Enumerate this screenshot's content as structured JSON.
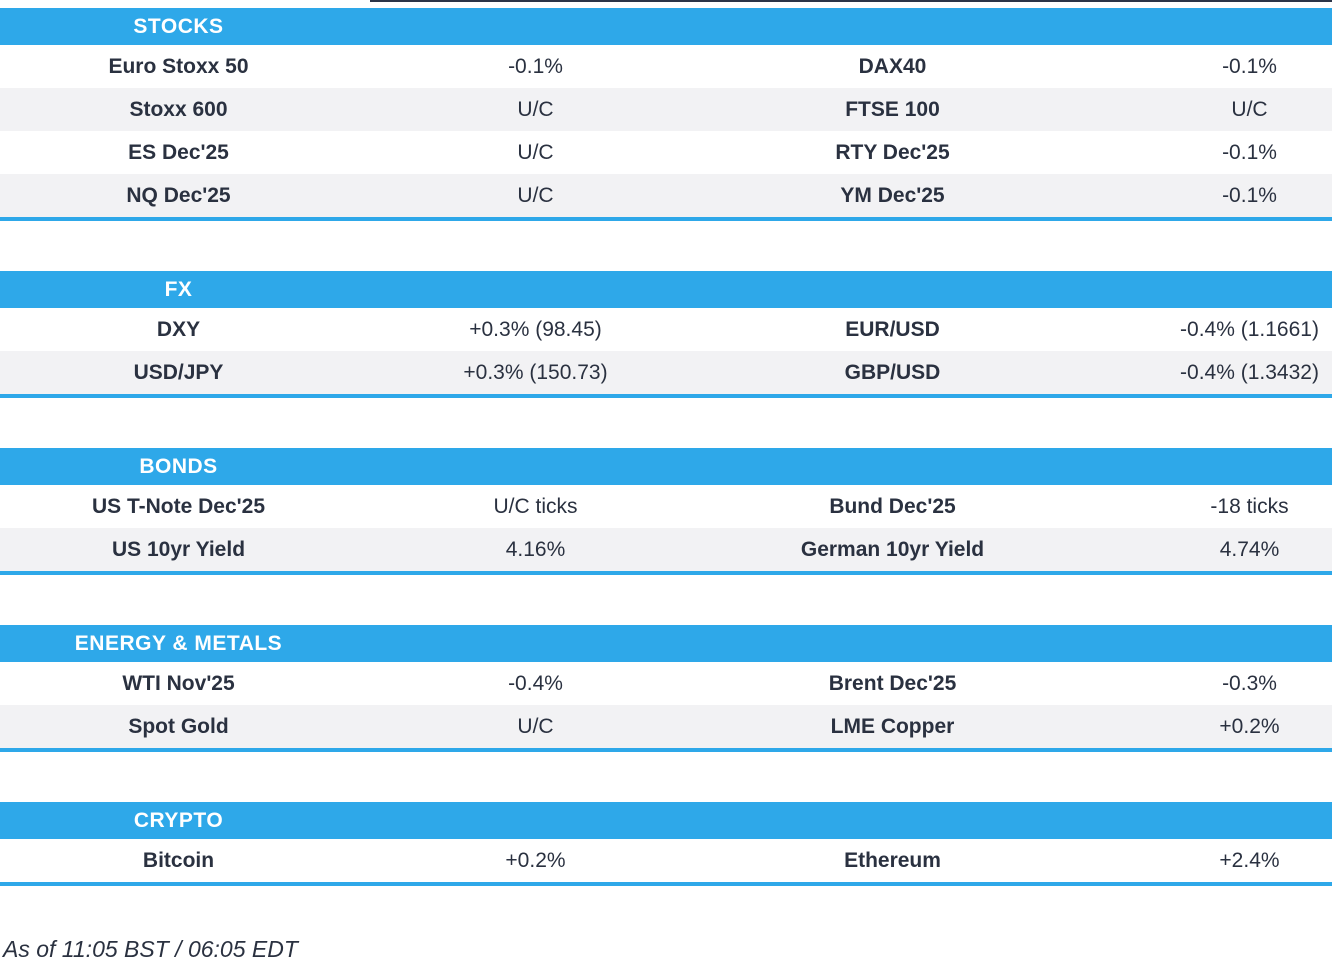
{
  "colors": {
    "accent_blue": "#2EA8E9",
    "row_alt": "#F2F2F4",
    "text_dark": "#2A3140",
    "header_text": "#FFFFFF",
    "top_sliver": "#2B3548"
  },
  "sections": {
    "stocks": {
      "title": "STOCKS",
      "rows": [
        {
          "left": {
            "label": "Euro Stoxx 50",
            "value": "-0.1%"
          },
          "right": {
            "label": "DAX40",
            "value": "-0.1%"
          }
        },
        {
          "left": {
            "label": "Stoxx 600",
            "value": "U/C"
          },
          "right": {
            "label": "FTSE 100",
            "value": "U/C"
          }
        },
        {
          "left": {
            "label": "ES Dec'25",
            "value": "U/C"
          },
          "right": {
            "label": "RTY Dec'25",
            "value": "-0.1%"
          }
        },
        {
          "left": {
            "label": "NQ Dec'25",
            "value": "U/C"
          },
          "right": {
            "label": "YM Dec'25",
            "value": "-0.1%"
          }
        }
      ]
    },
    "fx": {
      "title": "FX",
      "rows": [
        {
          "left": {
            "label": "DXY",
            "value": "+0.3% (98.45)"
          },
          "right": {
            "label": "EUR/USD",
            "value": "-0.4% (1.1661)"
          }
        },
        {
          "left": {
            "label": "USD/JPY",
            "value": "+0.3% (150.73)"
          },
          "right": {
            "label": "GBP/USD",
            "value": "-0.4% (1.3432)"
          }
        }
      ]
    },
    "bonds": {
      "title": "BONDS",
      "rows": [
        {
          "left": {
            "label": "US T-Note Dec'25",
            "value": "U/C ticks"
          },
          "right": {
            "label": "Bund Dec'25",
            "value": "-18 ticks"
          }
        },
        {
          "left": {
            "label": "US 10yr Yield",
            "value": "4.16%"
          },
          "right": {
            "label": "German 10yr Yield",
            "value": "4.74%"
          }
        }
      ]
    },
    "energy_metals": {
      "title": "ENERGY & METALS",
      "rows": [
        {
          "left": {
            "label": "WTI Nov'25",
            "value": "-0.4%"
          },
          "right": {
            "label": "Brent Dec'25",
            "value": "-0.3%"
          }
        },
        {
          "left": {
            "label": "Spot Gold",
            "value": "U/C"
          },
          "right": {
            "label": "LME Copper",
            "value": "+0.2%"
          }
        }
      ]
    },
    "crypto": {
      "title": "CRYPTO",
      "rows": [
        {
          "left": {
            "label": "Bitcoin",
            "value": "+0.2%"
          },
          "right": {
            "label": "Ethereum",
            "value": "+2.4%"
          }
        }
      ]
    }
  },
  "footer": {
    "as_of": "As of 11:05 BST / 06:05 EDT"
  }
}
